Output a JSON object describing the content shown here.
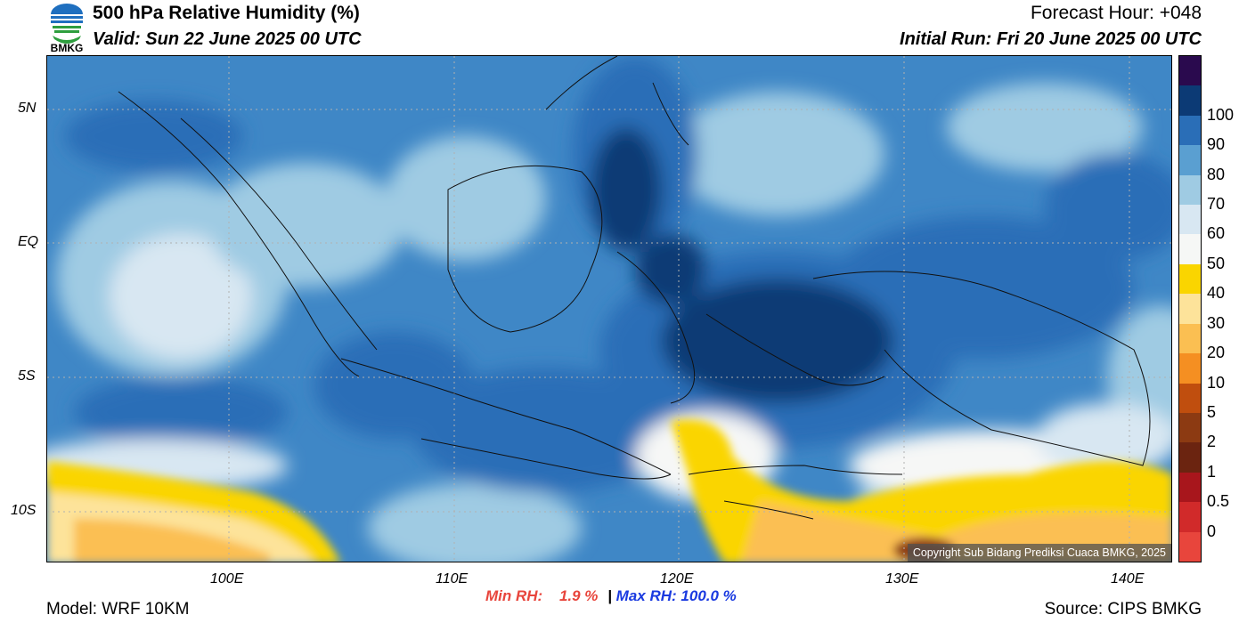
{
  "header": {
    "title": "500 hPa Relative Humidity (%)",
    "valid": "Valid: Sun 22 June 2025 00 UTC",
    "forecast_hour": "Forecast Hour: +048",
    "initial_run": "Initial Run: Fri 20 June 2025 00 UTC",
    "logo_text": "BMKG"
  },
  "map": {
    "lon_range": [
      92,
      142
    ],
    "lat_range": [
      -11.5,
      7
    ],
    "x_ticks": [
      {
        "label": "100E",
        "value": 100
      },
      {
        "label": "110E",
        "value": 110
      },
      {
        "label": "120E",
        "value": 120
      },
      {
        "label": "130E",
        "value": 130
      },
      {
        "label": "140E",
        "value": 140
      }
    ],
    "y_ticks": [
      {
        "label": "5N",
        "value": 5
      },
      {
        "label": "EQ",
        "value": 0
      },
      {
        "label": "5S",
        "value": -5
      },
      {
        "label": "10S",
        "value": -10
      }
    ],
    "copyright": "Copyright Sub Bidang Prediksi Cuaca BMKG, 2025"
  },
  "colorbar": {
    "levels": [
      {
        "label": "",
        "color": "#e8453c"
      },
      {
        "label": "0",
        "color": "#d12a2a"
      },
      {
        "label": "0.5",
        "color": "#a8161c"
      },
      {
        "label": "1",
        "color": "#6b2410"
      },
      {
        "label": "2",
        "color": "#8c3a12"
      },
      {
        "label": "5",
        "color": "#c04e0e"
      },
      {
        "label": "10",
        "color": "#f58f22"
      },
      {
        "label": "20",
        "color": "#fbbf52"
      },
      {
        "label": "30",
        "color": "#fde39a"
      },
      {
        "label": "40",
        "color": "#fad500"
      },
      {
        "label": "50",
        "color": "#f6f7f6"
      },
      {
        "label": "60",
        "color": "#d8e7f2"
      },
      {
        "label": "70",
        "color": "#9fcbe3"
      },
      {
        "label": "80",
        "color": "#5a9fd1"
      },
      {
        "label": "90",
        "color": "#2a6eb7"
      },
      {
        "label": "100",
        "color": "#0c3a75"
      },
      {
        "label": "",
        "color": "#2a0a4e"
      }
    ]
  },
  "stats": {
    "min_label": "Min RH:",
    "min_value": "1.9 %",
    "separator": "|",
    "max_label": "Max RH:",
    "max_value": "100.0 %",
    "min_color": "#e8453c",
    "max_color": "#1a3ae0"
  },
  "footer": {
    "model": "Model: WRF 10KM",
    "source": "Source: CIPS BMKG"
  }
}
